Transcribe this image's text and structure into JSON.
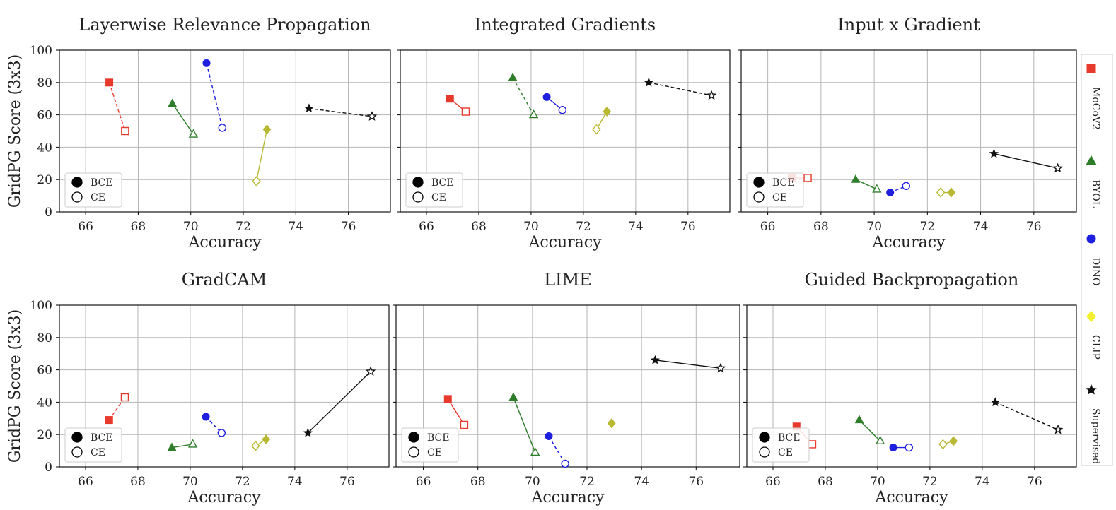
{
  "figure": {
    "ylabel": "GridPG Score (3x3)",
    "xlabel": "Accuracy"
  },
  "legend_inner": [
    {
      "label": "BCE",
      "fill": "filled"
    },
    {
      "label": "CE",
      "fill": "open"
    }
  ],
  "side_legend": [
    {
      "label": "MoCoV2",
      "marker": "square",
      "color": "#e8392d"
    },
    {
      "label": "BYOL",
      "marker": "triangle",
      "color": "#2e7d2a"
    },
    {
      "label": "DINO",
      "marker": "circle",
      "color": "#1f1fe0"
    },
    {
      "label": "CLIP",
      "marker": "diamond",
      "color": "#f3f032"
    },
    {
      "label": "Supervised",
      "marker": "star",
      "color": "#111111"
    }
  ],
  "chart_data": [
    {
      "type": "scatter",
      "title": "Layerwise Relevance Propagation",
      "xlabel": "Accuracy",
      "ylabel": "GridPG Score (3x3)",
      "xlim": [
        65,
        77.6
      ],
      "ylim": [
        0,
        100
      ],
      "xticks": [
        "66",
        "68",
        "70",
        "72",
        "74",
        "76"
      ],
      "yticks": [
        "0",
        "20",
        "40",
        "60",
        "80",
        "100"
      ],
      "series": [
        {
          "name": "MoCoV2",
          "marker": "square",
          "color": "#e8392d",
          "line": "dashed",
          "bce": [
            66.9,
            80
          ],
          "ce": [
            67.5,
            50
          ]
        },
        {
          "name": "BYOL",
          "marker": "triangle",
          "color": "#2e7d2a",
          "line": "solid",
          "bce": [
            69.3,
            67
          ],
          "ce": [
            70.1,
            48
          ]
        },
        {
          "name": "DINO",
          "marker": "circle",
          "color": "#1f1fe0",
          "line": "dashed",
          "bce": [
            70.6,
            92
          ],
          "ce": [
            71.2,
            52
          ]
        },
        {
          "name": "CLIP",
          "marker": "diamond",
          "color": "#b8b833",
          "line": "solid",
          "bce": [
            72.9,
            51
          ],
          "ce": [
            72.5,
            19
          ]
        },
        {
          "name": "Supervised",
          "marker": "star",
          "color": "#111111",
          "line": "dashed",
          "bce": [
            74.5,
            64
          ],
          "ce": [
            76.9,
            59
          ]
        }
      ]
    },
    {
      "type": "scatter",
      "title": "Integrated Gradients",
      "xlabel": "Accuracy",
      "ylabel": "GridPG Score (3x3)",
      "xlim": [
        65,
        77.6
      ],
      "ylim": [
        0,
        100
      ],
      "xticks": [
        "66",
        "68",
        "70",
        "72",
        "74",
        "76"
      ],
      "yticks": [
        "0",
        "20",
        "40",
        "60",
        "80",
        "100"
      ],
      "series": [
        {
          "name": "MoCoV2",
          "marker": "square",
          "color": "#e8392d",
          "line": "solid",
          "bce": [
            66.9,
            70
          ],
          "ce": [
            67.5,
            62
          ]
        },
        {
          "name": "BYOL",
          "marker": "triangle",
          "color": "#2e7d2a",
          "line": "dashed",
          "bce": [
            69.3,
            83
          ],
          "ce": [
            70.1,
            60
          ]
        },
        {
          "name": "DINO",
          "marker": "circle",
          "color": "#1f1fe0",
          "line": "solid",
          "bce": [
            70.6,
            71
          ],
          "ce": [
            71.2,
            63
          ]
        },
        {
          "name": "CLIP",
          "marker": "diamond",
          "color": "#b8b833",
          "line": "solid",
          "bce": [
            72.9,
            62
          ],
          "ce": [
            72.5,
            51
          ]
        },
        {
          "name": "Supervised",
          "marker": "star",
          "color": "#111111",
          "line": "dashed",
          "bce": [
            74.5,
            80
          ],
          "ce": [
            76.9,
            72
          ]
        }
      ]
    },
    {
      "type": "scatter",
      "title": "Input x Gradient",
      "xlabel": "Accuracy",
      "ylabel": "GridPG Score (3x3)",
      "xlim": [
        65,
        77.6
      ],
      "ylim": [
        0,
        100
      ],
      "xticks": [
        "66",
        "68",
        "70",
        "72",
        "74",
        "76"
      ],
      "yticks": [
        "0",
        "20",
        "40",
        "60",
        "80",
        "100"
      ],
      "series": [
        {
          "name": "MoCoV2",
          "marker": "square",
          "color": "#e8392d",
          "line": "solid",
          "bce": [
            66.9,
            21
          ],
          "ce": [
            67.5,
            21
          ]
        },
        {
          "name": "BYOL",
          "marker": "triangle",
          "color": "#2e7d2a",
          "line": "solid",
          "bce": [
            69.3,
            20
          ],
          "ce": [
            70.1,
            14
          ]
        },
        {
          "name": "DINO",
          "marker": "circle",
          "color": "#1f1fe0",
          "line": "dashed",
          "bce": [
            70.6,
            12
          ],
          "ce": [
            71.2,
            16
          ]
        },
        {
          "name": "CLIP",
          "marker": "diamond",
          "color": "#b8b833",
          "line": "solid",
          "bce": [
            72.9,
            12
          ],
          "ce": [
            72.5,
            12
          ]
        },
        {
          "name": "Supervised",
          "marker": "star",
          "color": "#111111",
          "line": "solid",
          "bce": [
            74.5,
            36
          ],
          "ce": [
            76.9,
            27
          ]
        }
      ]
    },
    {
      "type": "scatter",
      "title": "GradCAM",
      "xlabel": "Accuracy",
      "ylabel": "GridPG Score (3x3)",
      "xlim": [
        65,
        77.6
      ],
      "ylim": [
        0,
        100
      ],
      "xticks": [
        "66",
        "68",
        "70",
        "72",
        "74",
        "76"
      ],
      "yticks": [
        "0",
        "20",
        "40",
        "60",
        "80",
        "100"
      ],
      "series": [
        {
          "name": "MoCoV2",
          "marker": "square",
          "color": "#e8392d",
          "line": "dashed",
          "bce": [
            66.9,
            29
          ],
          "ce": [
            67.5,
            43
          ]
        },
        {
          "name": "BYOL",
          "marker": "triangle",
          "color": "#2e7d2a",
          "line": "solid",
          "bce": [
            69.3,
            12
          ],
          "ce": [
            70.1,
            14
          ]
        },
        {
          "name": "DINO",
          "marker": "circle",
          "color": "#1f1fe0",
          "line": "dashed",
          "bce": [
            70.6,
            31
          ],
          "ce": [
            71.2,
            21
          ]
        },
        {
          "name": "CLIP",
          "marker": "diamond",
          "color": "#b8b833",
          "line": "solid",
          "bce": [
            72.9,
            17
          ],
          "ce": [
            72.5,
            13
          ]
        },
        {
          "name": "Supervised",
          "marker": "star",
          "color": "#111111",
          "line": "solid",
          "bce": [
            74.5,
            21
          ],
          "ce": [
            76.9,
            59
          ]
        }
      ]
    },
    {
      "type": "scatter",
      "title": "LIME",
      "xlabel": "Accuracy",
      "ylabel": "GridPG Score (3x3)",
      "xlim": [
        65,
        77.6
      ],
      "ylim": [
        0,
        100
      ],
      "xticks": [
        "66",
        "68",
        "70",
        "72",
        "74",
        "76"
      ],
      "yticks": [
        "0",
        "20",
        "40",
        "60",
        "80",
        "100"
      ],
      "series": [
        {
          "name": "MoCoV2",
          "marker": "square",
          "color": "#e8392d",
          "line": "solid",
          "bce": [
            66.9,
            42
          ],
          "ce": [
            67.5,
            26
          ]
        },
        {
          "name": "BYOL",
          "marker": "triangle",
          "color": "#2e7d2a",
          "line": "solid",
          "bce": [
            69.3,
            43
          ],
          "ce": [
            70.1,
            9
          ]
        },
        {
          "name": "DINO",
          "marker": "circle",
          "color": "#1f1fe0",
          "line": "dashed",
          "bce": [
            70.6,
            19
          ],
          "ce": [
            71.2,
            2
          ]
        },
        {
          "name": "CLIP",
          "marker": "diamond",
          "color": "#b8b833",
          "line": "solid",
          "bce": [
            72.9,
            27
          ],
          "ce": null
        },
        {
          "name": "Supervised",
          "marker": "star",
          "color": "#111111",
          "line": "solid",
          "bce": [
            74.5,
            66
          ],
          "ce": [
            76.9,
            61
          ]
        }
      ]
    },
    {
      "type": "scatter",
      "title": "Guided Backpropagation",
      "xlabel": "Accuracy",
      "ylabel": "GridPG Score (3x3)",
      "xlim": [
        65,
        77.6
      ],
      "ylim": [
        0,
        100
      ],
      "xticks": [
        "66",
        "68",
        "70",
        "72",
        "74",
        "76"
      ],
      "yticks": [
        "0",
        "20",
        "40",
        "60",
        "80",
        "100"
      ],
      "series": [
        {
          "name": "MoCoV2",
          "marker": "square",
          "color": "#e8392d",
          "line": "solid",
          "bce": [
            66.9,
            25
          ],
          "ce": [
            67.5,
            14
          ]
        },
        {
          "name": "BYOL",
          "marker": "triangle",
          "color": "#2e7d2a",
          "line": "solid",
          "bce": [
            69.3,
            29
          ],
          "ce": [
            70.1,
            16
          ]
        },
        {
          "name": "DINO",
          "marker": "circle",
          "color": "#1f1fe0",
          "line": "solid",
          "bce": [
            70.6,
            12
          ],
          "ce": [
            71.2,
            12
          ]
        },
        {
          "name": "CLIP",
          "marker": "diamond",
          "color": "#b8b833",
          "line": "solid",
          "bce": [
            72.9,
            16
          ],
          "ce": [
            72.5,
            14
          ]
        },
        {
          "name": "Supervised",
          "marker": "star",
          "color": "#111111",
          "line": "dashed",
          "bce": [
            74.5,
            40
          ],
          "ce": [
            76.9,
            23
          ]
        }
      ]
    }
  ]
}
